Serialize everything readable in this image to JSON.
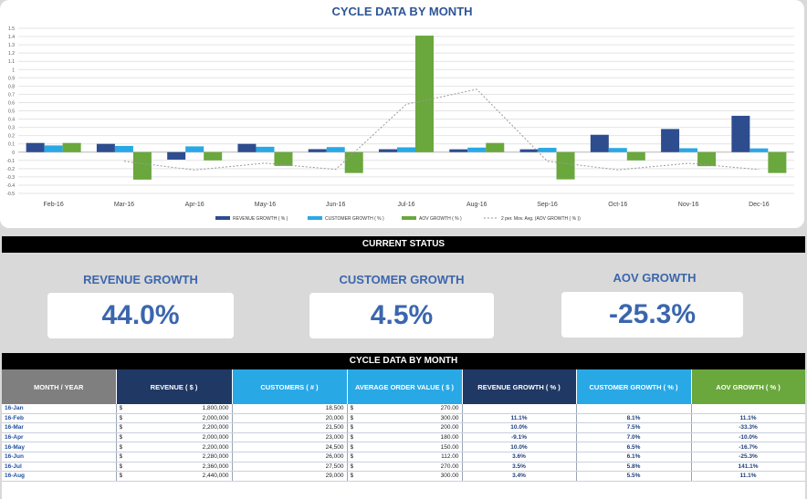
{
  "chart_data": {
    "type": "bar",
    "title": "CYCLE DATA BY MONTH",
    "categories": [
      "Feb-16",
      "Mar-16",
      "Apr-16",
      "May-16",
      "Jun-16",
      "Jul-16",
      "Aug-16",
      "Sep-16",
      "Oct-16",
      "Nov-16",
      "Dec-16"
    ],
    "series": [
      {
        "name": "REVENUE GROWTH  ( % )",
        "color": "#2e4d8f",
        "values": [
          0.111,
          0.1,
          -0.091,
          0.1,
          0.036,
          0.035,
          0.034,
          0.034,
          0.21,
          0.28,
          0.44
        ]
      },
      {
        "name": "CUSTOMER GROWTH  ( % )",
        "color": "#29a8e6",
        "values": [
          0.081,
          0.075,
          0.07,
          0.065,
          0.061,
          0.058,
          0.055,
          0.052,
          0.05,
          0.047,
          0.045
        ]
      },
      {
        "name": "AOV GROWTH  ( % )",
        "color": "#6aa73d",
        "values": [
          0.111,
          -0.333,
          -0.1,
          -0.167,
          -0.253,
          1.411,
          0.111,
          -0.33,
          -0.1,
          -0.17,
          -0.253
        ]
      },
      {
        "name": "2 per. Mov. Avg.  (AOV GROWTH  ( % ))",
        "type": "line",
        "color": "#9a9a9a",
        "values": [
          null,
          -0.111,
          -0.217,
          -0.133,
          -0.21,
          0.579,
          0.761,
          -0.11,
          -0.215,
          -0.135,
          -0.211
        ]
      }
    ],
    "yticks": [
      "1.5",
      "1.4",
      "1.3",
      "1.2",
      "1.1",
      "1",
      "0.9",
      "0.8",
      "0.7",
      "0.6",
      "0.5",
      "0.4",
      "0.3",
      "0.2",
      "0.1",
      "0",
      "-0.1",
      "-0.2",
      "-0.3",
      "-0.4",
      "-0.5"
    ],
    "ylim": [
      -0.5,
      1.5
    ],
    "xlabel": "",
    "ylabel": ""
  },
  "status": {
    "title": "CURRENT STATUS",
    "revenue_label": "REVENUE GROWTH",
    "revenue_value": "44.0%",
    "customer_label": "CUSTOMER GROWTH",
    "customer_value": "4.5%",
    "aov_label": "AOV GROWTH",
    "aov_value": "-25.3%"
  },
  "table": {
    "title": "CYCLE DATA BY MONTH",
    "headers": [
      "MONTH / YEAR",
      "REVENUE  ( $ )",
      "CUSTOMERS  ( # )",
      "AVERAGE ORDER VALUE  ( $ )",
      "REVENUE GROWTH  ( % )",
      "CUSTOMER GROWTH  ( % )",
      "AOV GROWTH  ( % )"
    ],
    "header_colors": [
      "#7f7f7f",
      "#1f3864",
      "#29a8e6",
      "#29a8e6",
      "#1f3864",
      "#29a8e6",
      "#6aa73d"
    ],
    "currency": "$",
    "rows": [
      [
        "16-Jan",
        "1,800,000",
        "18,500",
        "270.00",
        "",
        "",
        ""
      ],
      [
        "16-Feb",
        "2,000,000",
        "20,000",
        "300.00",
        "11.1%",
        "8.1%",
        "11.1%"
      ],
      [
        "16-Mar",
        "2,200,000",
        "21,500",
        "200.00",
        "10.0%",
        "7.5%",
        "-33.3%"
      ],
      [
        "16-Apr",
        "2,000,000",
        "23,000",
        "180.00",
        "-9.1%",
        "7.0%",
        "-10.0%"
      ],
      [
        "16-May",
        "2,200,000",
        "24,500",
        "150.00",
        "10.0%",
        "6.5%",
        "-16.7%"
      ],
      [
        "16-Jun",
        "2,280,000",
        "26,000",
        "112.00",
        "3.6%",
        "6.1%",
        "-25.3%"
      ],
      [
        "16-Jul",
        "2,360,000",
        "27,500",
        "270.00",
        "3.5%",
        "5.8%",
        "141.1%"
      ],
      [
        "16-Aug",
        "2,440,000",
        "29,000",
        "300.00",
        "3.4%",
        "5.5%",
        "11.1%"
      ]
    ]
  }
}
